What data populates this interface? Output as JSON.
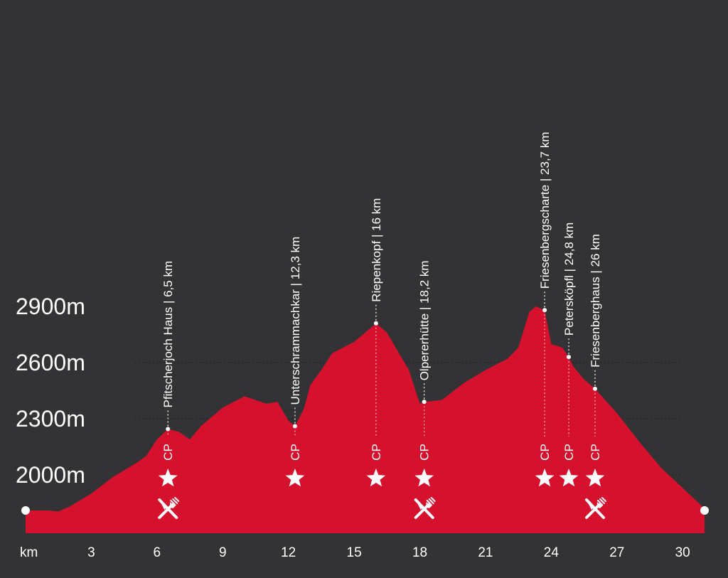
{
  "chart_data": {
    "type": "area",
    "title": "",
    "xlabel": "km",
    "ylabel": "",
    "color": "#d5112e",
    "background": "#333335",
    "grid": "dotted horizontal lines at 2000m, 2300m, 2600m",
    "xlim": [
      0,
      31
    ],
    "ylim": [
      1700,
      3100
    ],
    "x_ticks": [
      3,
      6,
      9,
      12,
      15,
      18,
      21,
      24,
      27,
      30
    ],
    "y_ticks": [
      {
        "value": 2000,
        "label": "2000m"
      },
      {
        "value": 2300,
        "label": "2300m"
      },
      {
        "value": 2600,
        "label": "2600m"
      },
      {
        "value": 2900,
        "label": "2900m"
      }
    ],
    "x_unit_label": "km",
    "series": [
      {
        "x": [
          0,
          1,
          1.5,
          2,
          3,
          4,
          5,
          5.5,
          6,
          6.5,
          7,
          7.5,
          8,
          9,
          10,
          10.5,
          11,
          11.5,
          12,
          12.3,
          12.7,
          13,
          13.5,
          14,
          15,
          15.5,
          16,
          16.5,
          17,
          17.5,
          18,
          18.2,
          19,
          20,
          21,
          22,
          22.5,
          23,
          23.3,
          23.7,
          24,
          24.5,
          24.8,
          25,
          25.5,
          26,
          27,
          28,
          29,
          30,
          31
        ],
        "y": [
          1810,
          1810,
          1805,
          1830,
          1900,
          1990,
          2060,
          2100,
          2190,
          2245,
          2230,
          2190,
          2260,
          2360,
          2420,
          2400,
          2380,
          2390,
          2290,
          2260,
          2350,
          2480,
          2560,
          2650,
          2710,
          2760,
          2810,
          2760,
          2660,
          2560,
          2380,
          2390,
          2400,
          2490,
          2560,
          2620,
          2680,
          2870,
          2900,
          2880,
          2700,
          2680,
          2630,
          2580,
          2510,
          2460,
          2330,
          2180,
          2040,
          1930,
          1820
        ]
      }
    ],
    "waypoints": [
      {
        "km": 6.5,
        "elevation": 2245,
        "name": "Pfitscherjoch Haus",
        "label": "Pfitscherjoch Haus  |  6,5 km",
        "checkpoint": "CP",
        "star": true,
        "food": true
      },
      {
        "km": 12.3,
        "elevation": 2260,
        "name": "Unterschrammachkar",
        "label": "Unterschrammachkar  |  12,3 km",
        "checkpoint": "CP",
        "star": true,
        "food": false
      },
      {
        "km": 16,
        "elevation": 2810,
        "name": "Riepenkopf",
        "label": "Riepenkopf  |  16 km",
        "checkpoint": "CP",
        "star": true,
        "food": false
      },
      {
        "km": 18.2,
        "elevation": 2390,
        "name": "Olpererhütte",
        "label": "Olpererhütte  |  18,2 km",
        "checkpoint": "CP",
        "star": true,
        "food": true
      },
      {
        "km": 23.7,
        "elevation": 2880,
        "name": "Friesenbergscharte",
        "label": "Friesenbergscharte  |  23,7 km",
        "checkpoint": "CP",
        "star": true,
        "food": false
      },
      {
        "km": 24.8,
        "elevation": 2630,
        "name": "Petersköpfl",
        "label": "Petersköpfl  |  24,8 km",
        "checkpoint": "CP",
        "star": true,
        "food": false
      },
      {
        "km": 26,
        "elevation": 2460,
        "name": "Friesenberghaus",
        "label": "Friesenberghaus  |  26 km",
        "checkpoint": "CP",
        "star": true,
        "food": true
      }
    ],
    "endpoints": [
      {
        "km": 0,
        "elevation": 1810
      },
      {
        "km": 31,
        "elevation": 1820
      }
    ]
  }
}
